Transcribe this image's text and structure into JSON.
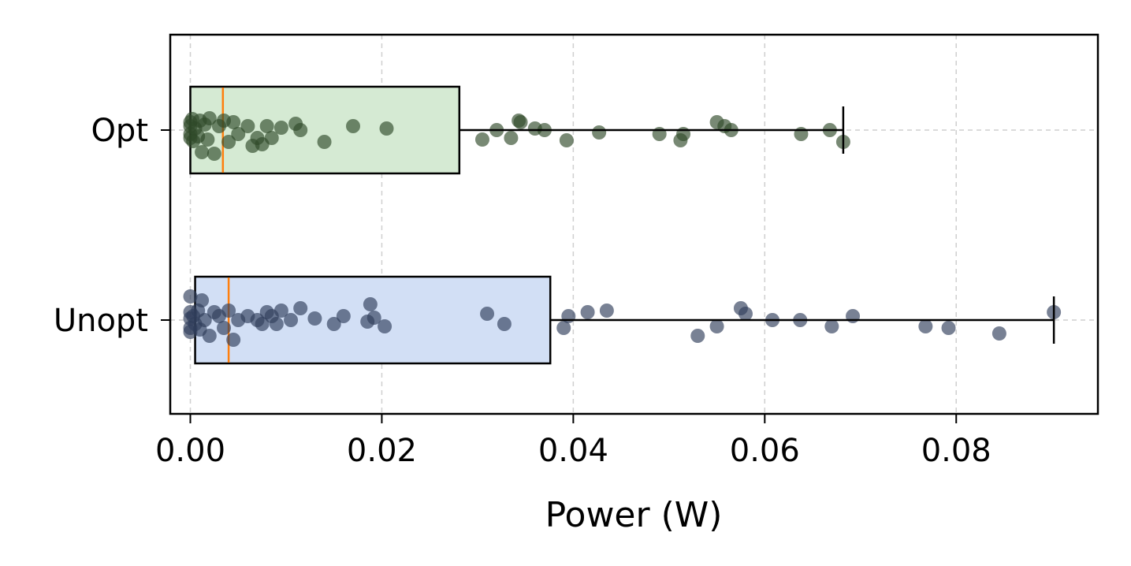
{
  "chart_data": {
    "type": "box",
    "orientation": "horizontal",
    "title": "",
    "xlabel": "Power (W)",
    "ylabel": "",
    "xlim": [
      -0.0021,
      0.0948
    ],
    "xticks": [
      0.0,
      0.02,
      0.04,
      0.06,
      0.08
    ],
    "xtick_labels": [
      "0.00",
      "0.02",
      "0.04",
      "0.06",
      "0.08"
    ],
    "categories": [
      "Opt",
      "Unopt"
    ],
    "grid": true,
    "series": [
      {
        "category": "Opt",
        "box_color": "#d5ead3",
        "point_color": "#2f4a2a",
        "q1": 0.0,
        "median": 0.0034,
        "q3": 0.0281,
        "whisker_low": 0.0,
        "whisker_high": 0.0682,
        "points": [
          {
            "x": 0.0,
            "j": 0.1
          },
          {
            "x": 0.0,
            "j": -0.1
          },
          {
            "x": 0.0,
            "j": 0.05
          },
          {
            "x": 0.0,
            "j": -0.05
          },
          {
            "x": 0.0002,
            "j": 0.14
          },
          {
            "x": 0.0003,
            "j": -0.14
          },
          {
            "x": 0.0005,
            "j": 0.02
          },
          {
            "x": 0.0008,
            "j": -0.08
          },
          {
            "x": 0.001,
            "j": 0.12
          },
          {
            "x": 0.0012,
            "j": -0.28
          },
          {
            "x": 0.0015,
            "j": 0.07
          },
          {
            "x": 0.0018,
            "j": -0.12
          },
          {
            "x": 0.002,
            "j": 0.15
          },
          {
            "x": 0.0025,
            "j": -0.3
          },
          {
            "x": 0.003,
            "j": 0.05
          },
          {
            "x": 0.0035,
            "j": 0.12
          },
          {
            "x": 0.004,
            "j": -0.15
          },
          {
            "x": 0.0045,
            "j": 0.1
          },
          {
            "x": 0.005,
            "j": -0.05
          },
          {
            "x": 0.006,
            "j": 0.05
          },
          {
            "x": 0.0065,
            "j": -0.2
          },
          {
            "x": 0.007,
            "j": -0.1
          },
          {
            "x": 0.0075,
            "j": -0.18
          },
          {
            "x": 0.008,
            "j": 0.05
          },
          {
            "x": 0.0085,
            "j": -0.1
          },
          {
            "x": 0.0095,
            "j": 0.03
          },
          {
            "x": 0.011,
            "j": 0.08
          },
          {
            "x": 0.0115,
            "j": 0.0
          },
          {
            "x": 0.014,
            "j": -0.15
          },
          {
            "x": 0.017,
            "j": 0.05
          },
          {
            "x": 0.0205,
            "j": 0.02
          },
          {
            "x": 0.0305,
            "j": -0.12
          },
          {
            "x": 0.032,
            "j": 0.0
          },
          {
            "x": 0.0335,
            "j": -0.1
          },
          {
            "x": 0.0343,
            "j": 0.12
          },
          {
            "x": 0.0345,
            "j": 0.1
          },
          {
            "x": 0.036,
            "j": 0.02
          },
          {
            "x": 0.037,
            "j": 0.0
          },
          {
            "x": 0.0393,
            "j": -0.13
          },
          {
            "x": 0.0427,
            "j": -0.03
          },
          {
            "x": 0.049,
            "j": -0.05
          },
          {
            "x": 0.0512,
            "j": -0.13
          },
          {
            "x": 0.0515,
            "j": -0.05
          },
          {
            "x": 0.055,
            "j": 0.1
          },
          {
            "x": 0.0558,
            "j": 0.05
          },
          {
            "x": 0.0565,
            "j": 0.0
          },
          {
            "x": 0.0638,
            "j": -0.05
          },
          {
            "x": 0.0668,
            "j": 0.0
          },
          {
            "x": 0.0682,
            "j": -0.15
          }
        ]
      },
      {
        "category": "Unopt",
        "box_color": "#d2dff5",
        "point_color": "#2f3d5a",
        "q1": 0.0005,
        "median": 0.004,
        "q3": 0.0376,
        "whisker_low": 0.0,
        "whisker_high": 0.0902,
        "points": [
          {
            "x": 0.0,
            "j": 0.3
          },
          {
            "x": 0.0,
            "j": 0.1
          },
          {
            "x": 0.0,
            "j": -0.1
          },
          {
            "x": 0.0,
            "j": 0.02
          },
          {
            "x": 0.0,
            "j": -0.15
          },
          {
            "x": 0.0003,
            "j": 0.05
          },
          {
            "x": 0.0005,
            "j": -0.05
          },
          {
            "x": 0.0008,
            "j": 0.12
          },
          {
            "x": 0.001,
            "j": -0.12
          },
          {
            "x": 0.0012,
            "j": 0.25
          },
          {
            "x": 0.0015,
            "j": 0.0
          },
          {
            "x": 0.002,
            "j": -0.2
          },
          {
            "x": 0.0025,
            "j": 0.1
          },
          {
            "x": 0.003,
            "j": 0.05
          },
          {
            "x": 0.0035,
            "j": -0.1
          },
          {
            "x": 0.004,
            "j": 0.12
          },
          {
            "x": 0.0045,
            "j": -0.25
          },
          {
            "x": 0.005,
            "j": 0.0
          },
          {
            "x": 0.006,
            "j": 0.05
          },
          {
            "x": 0.007,
            "j": 0.0
          },
          {
            "x": 0.0075,
            "j": -0.05
          },
          {
            "x": 0.008,
            "j": 0.1
          },
          {
            "x": 0.0085,
            "j": 0.05
          },
          {
            "x": 0.009,
            "j": -0.05
          },
          {
            "x": 0.0095,
            "j": 0.12
          },
          {
            "x": 0.0105,
            "j": 0.0
          },
          {
            "x": 0.0115,
            "j": 0.15
          },
          {
            "x": 0.013,
            "j": 0.02
          },
          {
            "x": 0.015,
            "j": -0.05
          },
          {
            "x": 0.016,
            "j": 0.05
          },
          {
            "x": 0.0185,
            "j": -0.02
          },
          {
            "x": 0.0188,
            "j": 0.2
          },
          {
            "x": 0.0192,
            "j": 0.03
          },
          {
            "x": 0.0203,
            "j": -0.08
          },
          {
            "x": 0.031,
            "j": 0.08
          },
          {
            "x": 0.0328,
            "j": -0.05
          },
          {
            "x": 0.039,
            "j": -0.1
          },
          {
            "x": 0.0395,
            "j": 0.05
          },
          {
            "x": 0.0415,
            "j": 0.1
          },
          {
            "x": 0.0435,
            "j": 0.12
          },
          {
            "x": 0.053,
            "j": -0.2
          },
          {
            "x": 0.055,
            "j": -0.08
          },
          {
            "x": 0.0575,
            "j": 0.15
          },
          {
            "x": 0.058,
            "j": 0.08
          },
          {
            "x": 0.0608,
            "j": 0.0
          },
          {
            "x": 0.0637,
            "j": 0.0
          },
          {
            "x": 0.067,
            "j": -0.08
          },
          {
            "x": 0.0692,
            "j": 0.05
          },
          {
            "x": 0.0768,
            "j": -0.08
          },
          {
            "x": 0.0792,
            "j": -0.1
          },
          {
            "x": 0.0845,
            "j": -0.17
          },
          {
            "x": 0.0902,
            "j": 0.1
          }
        ]
      }
    ],
    "median_color": "#ff7f0e"
  }
}
